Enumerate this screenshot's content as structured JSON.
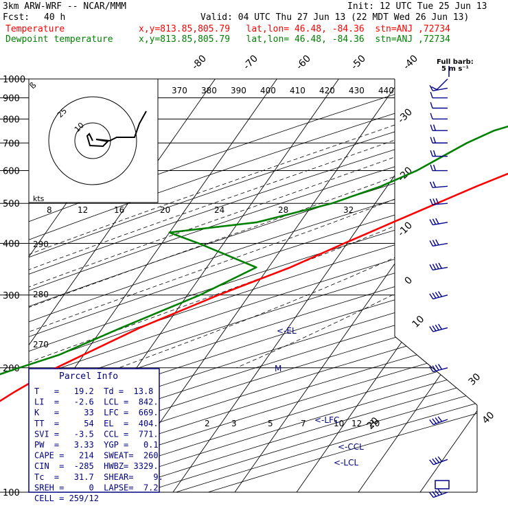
{
  "header": {
    "title": "3km ARW-WRF -- NCAR/MMM",
    "init": "Init: 12 UTC Tue 25 Jun 13",
    "fcst_label": "Fcst:",
    "fcst_value": "40 h",
    "valid": "Valid: 04 UTC Thu 27 Jun 13 (22 MDT Wed 26 Jun 13)",
    "temp_label": "Temperature",
    "temp_loc": "x,y=813.85,805.79   lat,lon= 46.48, -84.36  stn=ANJ ,72734",
    "dew_label": "Dewpoint temperature",
    "dew_loc": "x,y=813.85,805.79   lat,lon= 46.48, -84.36  stn=ANJ ,72734"
  },
  "parcel": {
    "title": "Parcel Info",
    "rows": [
      "T   =   19.2  Td =  13.8",
      "LI  =   -2.6  LCL =  842.",
      "K   =     33  LFC =  669.",
      "TT  =     54  EL  =  404.",
      "SVI =   -3.5  CCL =  771.",
      "PW  =   3.33  YGP =   0.1",
      "CAPE =   214  SWEAT=  260",
      "CIN  =  -285  HWBZ= 3329.",
      "Tc  =   31.7  SHEAR=    9.",
      "SREH =     0  LAPSE=  7.2",
      "CELL = 259/12"
    ]
  },
  "barb_legend": {
    "title": "Full barb:",
    "value": "5 m s⁻¹"
  },
  "hodograph": {
    "units": "kts",
    "speed_labels": [
      "25",
      "10"
    ],
    "axis_labels": [
      "8",
      "12",
      "16",
      "20",
      "24",
      "28",
      "32"
    ]
  },
  "chart_data": {
    "type": "line",
    "title": "",
    "ylabel": "",
    "xlabel": "",
    "pressure_levels": [
      100,
      200,
      300,
      400,
      500,
      600,
      700,
      800,
      900,
      1000
    ],
    "isotherm_labels_top": [
      "-80",
      "-70",
      "-60",
      "-50",
      "-40"
    ],
    "isotherm_labels_right": [
      "-30",
      "-20",
      "-10",
      "0",
      "10",
      "20",
      "30",
      "40"
    ],
    "theta_e_labels": [
      "370",
      "380",
      "390",
      "400",
      "410",
      "420",
      "430",
      "440"
    ],
    "mixing_ratio_labels": [
      "2",
      "3",
      "5",
      "7",
      "10",
      "12",
      "20"
    ],
    "left_labels": [
      "290",
      "280",
      "270"
    ],
    "level_markers": [
      "<-EL",
      "M",
      "<-LFC",
      "<-CCL",
      "<-LCL"
    ],
    "series": [
      {
        "name": "Temperature",
        "color": "#ff0000",
        "points": [
          [
            1000,
            21.5
          ],
          [
            980,
            22.0
          ],
          [
            950,
            21.8
          ],
          [
            925,
            20.2
          ],
          [
            900,
            18.5
          ],
          [
            850,
            16.0
          ],
          [
            800,
            14.0
          ],
          [
            750,
            11.0
          ],
          [
            700,
            8.0
          ],
          [
            650,
            4.0
          ],
          [
            600,
            -1.0
          ],
          [
            550,
            -5.5
          ],
          [
            500,
            -10.0
          ],
          [
            450,
            -15.0
          ],
          [
            400,
            -20.5
          ],
          [
            350,
            -26.5
          ],
          [
            300,
            -35.0
          ],
          [
            250,
            -44.0
          ],
          [
            200,
            -53.0
          ],
          [
            175,
            -57.0
          ],
          [
            150,
            -61.0
          ],
          [
            130,
            -62.0
          ],
          [
            115,
            -64.0
          ],
          [
            100,
            -66.0
          ]
        ]
      },
      {
        "name": "Dewpoint temperature",
        "color": "#008000",
        "points": [
          [
            1000,
            11.0
          ],
          [
            975,
            12.0
          ],
          [
            950,
            13.8
          ],
          [
            925,
            13.5
          ],
          [
            900,
            12.0
          ],
          [
            875,
            8.0
          ],
          [
            850,
            2.0
          ],
          [
            800,
            -4.0
          ],
          [
            750,
            -9.0
          ],
          [
            700,
            -12.0
          ],
          [
            600,
            -17.0
          ],
          [
            550,
            -21.0
          ],
          [
            500,
            -27.0
          ],
          [
            450,
            -37.0
          ],
          [
            425,
            -50.0
          ],
          [
            400,
            -44.0
          ],
          [
            350,
            -32.0
          ],
          [
            300,
            -38.0
          ],
          [
            250,
            -47.0
          ],
          [
            215,
            -54.0
          ],
          [
            200,
            -59.0
          ],
          [
            180,
            -66.0
          ],
          [
            165,
            -70.0
          ],
          [
            150,
            -74.0
          ],
          [
            140,
            -73.0
          ],
          [
            120,
            -73.0
          ],
          [
            100,
            -77.0
          ]
        ]
      }
    ],
    "wind_barbs": [
      {
        "p": 1000,
        "dir": 225,
        "spd": 3
      },
      {
        "p": 950,
        "dir": 260,
        "spd": 4
      },
      {
        "p": 900,
        "dir": 270,
        "spd": 5
      },
      {
        "p": 850,
        "dir": 270,
        "spd": 6
      },
      {
        "p": 800,
        "dir": 270,
        "spd": 7
      },
      {
        "p": 750,
        "dir": 270,
        "spd": 8
      },
      {
        "p": 700,
        "dir": 270,
        "spd": 9
      },
      {
        "p": 650,
        "dir": 270,
        "spd": 10
      },
      {
        "p": 600,
        "dir": 270,
        "spd": 11
      },
      {
        "p": 550,
        "dir": 265,
        "spd": 12
      },
      {
        "p": 500,
        "dir": 265,
        "spd": 13
      },
      {
        "p": 450,
        "dir": 260,
        "spd": 14
      },
      {
        "p": 400,
        "dir": 260,
        "spd": 16
      },
      {
        "p": 350,
        "dir": 260,
        "spd": 18
      },
      {
        "p": 300,
        "dir": 255,
        "spd": 20
      },
      {
        "p": 250,
        "dir": 255,
        "spd": 22
      },
      {
        "p": 200,
        "dir": 255,
        "spd": 24
      },
      {
        "p": 150,
        "dir": 250,
        "spd": 22
      },
      {
        "p": 120,
        "dir": 250,
        "spd": 20
      },
      {
        "p": 100,
        "dir": 250,
        "spd": 18
      }
    ]
  }
}
